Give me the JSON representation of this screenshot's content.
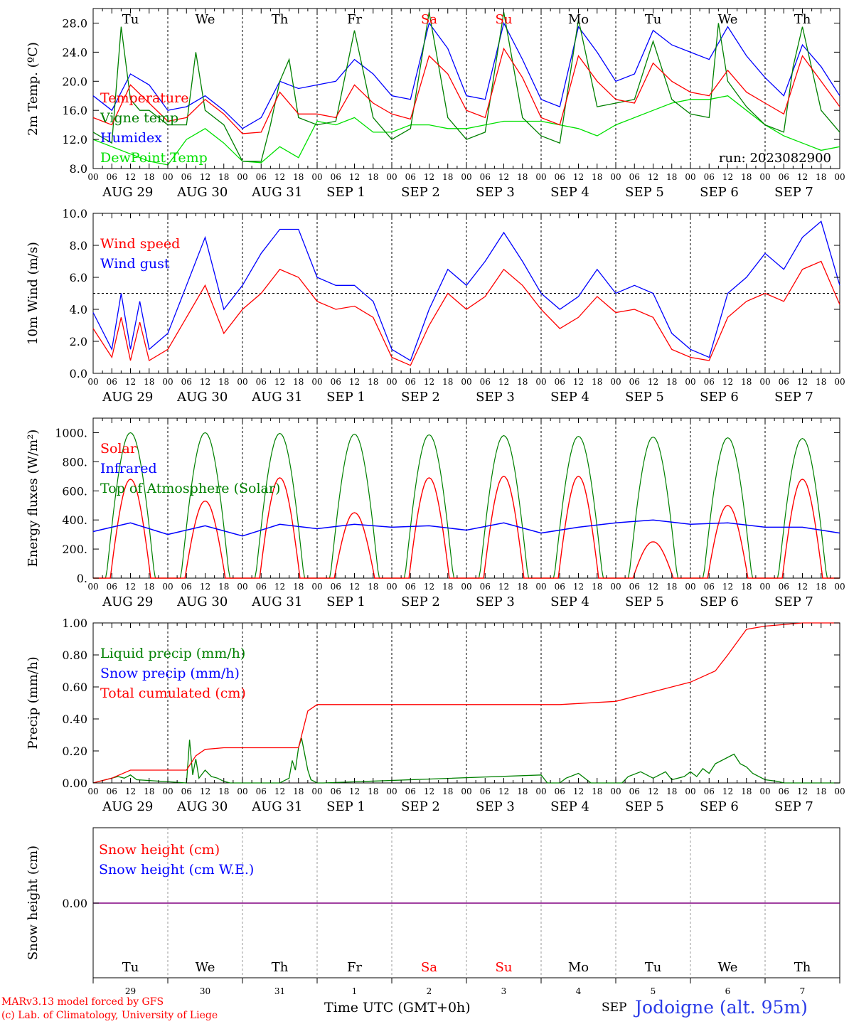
{
  "chart_data": [
    {
      "type": "line",
      "ylabel_html": "2m Temp. (ºC)",
      "ylim": [
        8,
        30
      ],
      "yticks": [
        "8.0",
        "12.0",
        "16.0",
        "20.0",
        "24.0",
        "28.0"
      ],
      "ytick_values": [
        8,
        12,
        16,
        20,
        24,
        28
      ],
      "grid": "daily dashed verticals",
      "legend": [
        {
          "name": "Temperature",
          "color": "#ff0000"
        },
        {
          "name": "Vigne temp",
          "color": "#008000"
        },
        {
          "name": "Humidex",
          "color": "#0000ff"
        },
        {
          "name": "DewPoint Temp",
          "color": "#00e000"
        }
      ],
      "annotation": "run: 2023082900",
      "day_labels": [
        "Tu",
        "We",
        "Th",
        "Fr",
        "Sa",
        "Su",
        "Mo",
        "Tu",
        "We",
        "Th"
      ],
      "series_x_unit": "hours since 2023-08-29 00 UTC",
      "series": [
        {
          "name": "Temperature",
          "color": "#ff0000",
          "x": [
            0,
            6,
            12,
            18,
            24,
            30,
            36,
            42,
            48,
            54,
            60,
            66,
            72,
            78,
            84,
            90,
            96,
            102,
            108,
            114,
            120,
            126,
            132,
            138,
            144,
            150,
            156,
            162,
            168,
            174,
            180,
            186,
            192,
            198,
            204,
            210,
            216,
            222,
            228,
            234,
            240
          ],
          "values": [
            15.0,
            14.0,
            19.5,
            17.0,
            14.5,
            15.0,
            17.5,
            15.5,
            12.8,
            13.0,
            18.5,
            15.5,
            15.5,
            15.0,
            19.5,
            17.0,
            15.5,
            14.8,
            23.5,
            21.0,
            16.0,
            15.0,
            24.5,
            20.5,
            15.0,
            14.0,
            23.5,
            20.0,
            17.5,
            17.0,
            22.5,
            20.0,
            18.5,
            18.0,
            21.5,
            18.5,
            17.0,
            15.5,
            23.5,
            20.0,
            16.5
          ]
        },
        {
          "name": "Vigne temp",
          "color": "#008000",
          "x": [
            0,
            6,
            9,
            12,
            15,
            18,
            24,
            30,
            33,
            36,
            42,
            48,
            54,
            57,
            60,
            63,
            66,
            72,
            78,
            84,
            90,
            96,
            102,
            108,
            114,
            120,
            126,
            132,
            138,
            144,
            150,
            156,
            162,
            168,
            174,
            180,
            186,
            192,
            198,
            201,
            204,
            210,
            216,
            222,
            225,
            228,
            234,
            240
          ],
          "values": [
            13.0,
            11.5,
            27.5,
            17.5,
            16.0,
            16.0,
            14.0,
            14.0,
            24.0,
            16.0,
            14.0,
            9.0,
            9.0,
            14.0,
            20.0,
            23.0,
            15.0,
            14.0,
            14.5,
            27.0,
            15.0,
            12.0,
            13.5,
            29.5,
            15.0,
            12.0,
            13.0,
            29.5,
            15.0,
            12.5,
            11.5,
            28.5,
            16.5,
            17.0,
            17.5,
            25.5,
            17.5,
            15.5,
            15.0,
            28.0,
            20.0,
            16.5,
            14.0,
            13.0,
            22.0,
            27.5,
            16.0,
            13.0
          ]
        },
        {
          "name": "Humidex",
          "color": "#0000ff",
          "x": [
            0,
            6,
            12,
            18,
            24,
            30,
            36,
            42,
            48,
            54,
            60,
            66,
            72,
            78,
            84,
            90,
            96,
            102,
            108,
            114,
            120,
            126,
            132,
            138,
            144,
            150,
            156,
            162,
            168,
            174,
            180,
            186,
            192,
            198,
            204,
            210,
            216,
            222,
            228,
            234,
            240
          ],
          "values": [
            18.0,
            16.0,
            21.0,
            19.5,
            16.0,
            16.5,
            18.0,
            16.0,
            13.5,
            15.0,
            20.0,
            19.0,
            19.5,
            20.0,
            23.0,
            21.0,
            18.0,
            17.5,
            28.0,
            24.5,
            18.0,
            17.5,
            28.0,
            23.0,
            17.5,
            16.5,
            27.5,
            24.0,
            20.0,
            21.0,
            27.0,
            25.0,
            24.0,
            23.0,
            27.5,
            23.5,
            20.5,
            18.0,
            25.0,
            22.0,
            18.0
          ]
        },
        {
          "name": "DewPoint Temp",
          "color": "#00e000",
          "x": [
            0,
            6,
            12,
            18,
            24,
            30,
            36,
            42,
            48,
            54,
            60,
            66,
            72,
            78,
            84,
            90,
            96,
            102,
            108,
            114,
            120,
            126,
            132,
            138,
            144,
            150,
            156,
            162,
            168,
            174,
            180,
            186,
            192,
            198,
            204,
            210,
            216,
            222,
            228,
            234,
            240
          ],
          "values": [
            12.0,
            11.0,
            10.0,
            9.0,
            8.5,
            12.0,
            13.5,
            11.5,
            9.0,
            8.8,
            11.0,
            9.5,
            14.5,
            14.0,
            15.0,
            13.0,
            13.0,
            14.0,
            14.0,
            13.5,
            13.5,
            14.0,
            14.5,
            14.5,
            14.5,
            14.0,
            13.5,
            12.5,
            14.0,
            15.0,
            16.0,
            17.0,
            17.5,
            17.5,
            18.0,
            16.0,
            14.0,
            12.5,
            11.5,
            10.5,
            11.0
          ]
        }
      ]
    },
    {
      "type": "line",
      "ylabel": "10m Wind (m/s)",
      "ylim": [
        0,
        10
      ],
      "yticks": [
        "0.0",
        "2.0",
        "4.0",
        "6.0",
        "8.0",
        "10.0"
      ],
      "ytick_values": [
        0,
        2,
        4,
        6,
        8,
        10
      ],
      "reference_line": 5.0,
      "legend": [
        {
          "name": "Wind speed",
          "color": "#ff0000"
        },
        {
          "name": "Wind gust",
          "color": "#0000ff"
        }
      ],
      "series_x_unit": "hours since 2023-08-29 00 UTC",
      "series": [
        {
          "name": "Wind speed",
          "color": "#ff0000",
          "x": [
            0,
            6,
            9,
            12,
            15,
            18,
            24,
            30,
            36,
            42,
            48,
            54,
            60,
            66,
            72,
            78,
            84,
            90,
            96,
            102,
            108,
            114,
            120,
            126,
            132,
            138,
            144,
            150,
            156,
            162,
            168,
            174,
            180,
            186,
            192,
            198,
            204,
            210,
            216,
            222,
            228,
            234,
            240
          ],
          "values": [
            2.8,
            1.0,
            3.5,
            0.8,
            3.2,
            0.8,
            1.5,
            3.5,
            5.5,
            2.5,
            4.0,
            5.0,
            6.5,
            6.0,
            4.5,
            4.0,
            4.2,
            3.5,
            1.0,
            0.5,
            3.0,
            5.0,
            4.0,
            4.8,
            6.5,
            5.5,
            4.0,
            2.8,
            3.5,
            4.8,
            3.8,
            4.0,
            3.5,
            1.5,
            1.0,
            0.8,
            3.5,
            4.5,
            5.0,
            4.5,
            6.5,
            7.0,
            4.3
          ]
        },
        {
          "name": "Wind gust",
          "color": "#0000ff",
          "x": [
            0,
            6,
            9,
            12,
            15,
            18,
            24,
            30,
            36,
            42,
            48,
            54,
            60,
            66,
            72,
            78,
            84,
            90,
            96,
            102,
            108,
            114,
            120,
            126,
            132,
            138,
            144,
            150,
            156,
            162,
            168,
            174,
            180,
            186,
            192,
            198,
            204,
            210,
            216,
            222,
            228,
            234,
            240
          ],
          "values": [
            3.8,
            1.5,
            5.0,
            1.5,
            4.5,
            1.5,
            2.5,
            5.5,
            8.5,
            4.0,
            5.5,
            7.5,
            9.0,
            9.0,
            6.0,
            5.5,
            5.5,
            4.5,
            1.5,
            0.8,
            4.0,
            6.5,
            5.5,
            7.0,
            8.8,
            7.0,
            5.0,
            4.0,
            4.8,
            6.5,
            5.0,
            5.5,
            5.0,
            2.5,
            1.5,
            1.0,
            5.0,
            6.0,
            7.5,
            6.5,
            8.5,
            9.5,
            5.5
          ]
        }
      ]
    },
    {
      "type": "line",
      "ylabel": "Energy fluxes (W/m²)",
      "ylim": [
        0,
        1100
      ],
      "yticks": [
        "0.",
        "200.",
        "400.",
        "600.",
        "800.",
        "1000."
      ],
      "ytick_values": [
        0,
        200,
        400,
        600,
        800,
        1000
      ],
      "legend": [
        {
          "name": "Solar",
          "color": "#ff0000"
        },
        {
          "name": "Infrared",
          "color": "#0000ff"
        },
        {
          "name": "Top of Atmosphere (Solar)",
          "color": "#008000"
        }
      ],
      "series_x_unit": "hours since 2023-08-29 00 UTC",
      "toa_daily_peak": [
        1000,
        1000,
        995,
        990,
        985,
        980,
        975,
        970,
        965,
        960
      ],
      "solar_daily_peak": [
        680,
        530,
        690,
        450,
        690,
        700,
        700,
        250,
        500,
        680
      ],
      "series": [
        {
          "name": "Infrared",
          "color": "#0000ff",
          "x": [
            0,
            12,
            24,
            36,
            48,
            60,
            72,
            84,
            96,
            108,
            120,
            132,
            144,
            156,
            168,
            180,
            192,
            204,
            216,
            228,
            240
          ],
          "values": [
            320,
            380,
            300,
            360,
            290,
            370,
            340,
            370,
            350,
            360,
            330,
            380,
            310,
            350,
            380,
            400,
            370,
            380,
            350,
            350,
            310
          ]
        }
      ]
    },
    {
      "type": "line",
      "ylabel": "Precip (mm/h)",
      "ylim": [
        0,
        1.0
      ],
      "yticks": [
        "0.00",
        "0.20",
        "0.40",
        "0.60",
        "0.80",
        "1.00"
      ],
      "ytick_values": [
        0,
        0.2,
        0.4,
        0.6,
        0.8,
        1.0
      ],
      "legend": [
        {
          "name": "Liquid precip (mm/h)",
          "color": "#008000"
        },
        {
          "name": "Snow precip (mm/h)",
          "color": "#0000ff"
        },
        {
          "name": "Total cumulated (cm)",
          "color": "#ff0000"
        }
      ],
      "series_x_unit": "hours since 2023-08-29 00 UTC",
      "series": [
        {
          "name": "Total cumulated (cm)",
          "color": "#ff0000",
          "x": [
            0,
            6,
            12,
            30,
            33,
            36,
            42,
            66,
            69,
            72,
            96,
            150,
            168,
            174,
            186,
            192,
            200,
            204,
            210,
            216,
            228,
            240
          ],
          "values": [
            0,
            0.03,
            0.08,
            0.08,
            0.17,
            0.21,
            0.22,
            0.22,
            0.45,
            0.49,
            0.49,
            0.49,
            0.51,
            0.54,
            0.6,
            0.63,
            0.7,
            0.8,
            0.96,
            0.98,
            1.0,
            1.0
          ]
        },
        {
          "name": "Liquid precip (mm/h)",
          "color": "#008000",
          "x": [
            0,
            4,
            8,
            10,
            12,
            14,
            30,
            31,
            32,
            33,
            34,
            36,
            38,
            40,
            42,
            44,
            60,
            63,
            64,
            65,
            66,
            67,
            68,
            69,
            70,
            72,
            74,
            144,
            146,
            150,
            152,
            156,
            160,
            170,
            172,
            176,
            180,
            184,
            186,
            190,
            192,
            194,
            196,
            198,
            200,
            202,
            204,
            206,
            208,
            210,
            212,
            216,
            220,
            222,
            240
          ],
          "values": [
            0,
            0.02,
            0.04,
            0.03,
            0.05,
            0.02,
            0,
            0.27,
            0.05,
            0.15,
            0.03,
            0.08,
            0.04,
            0.03,
            0.01,
            0,
            0,
            0.03,
            0.14,
            0.08,
            0.22,
            0.28,
            0.18,
            0.08,
            0.02,
            0,
            0,
            0.05,
            0,
            0,
            0.03,
            0.06,
            0,
            0,
            0.04,
            0.07,
            0.03,
            0.07,
            0.02,
            0.04,
            0.07,
            0.04,
            0.09,
            0.06,
            0.12,
            0.14,
            0.16,
            0.18,
            0.12,
            0.1,
            0.06,
            0.02,
            0.01,
            0,
            0
          ]
        }
      ]
    },
    {
      "type": "line",
      "ylabel": "Snow height (cm)",
      "yticks": [
        "0.00"
      ],
      "legend": [
        {
          "name": "Snow height (cm)",
          "color": "#ff0000"
        },
        {
          "name": "Snow height (cm W.E.)",
          "color": "#0000ff"
        }
      ],
      "series": [
        {
          "name": "Snow height (cm)",
          "values": [
            0.0,
            0.0
          ]
        },
        {
          "name": "Snow height (cm W.E.)",
          "values": [
            0.0,
            0.0
          ]
        }
      ],
      "bottom_days": [
        "Tu",
        "We",
        "Th",
        "Fr",
        "Sa",
        "Su",
        "Mo",
        "Tu",
        "We",
        "Th"
      ],
      "bottom_dates": [
        "29",
        "30",
        "31",
        "1",
        "2",
        "3",
        "4",
        "5",
        "6",
        "7"
      ],
      "xlabel": "Time UTC (GMT+0h)"
    }
  ],
  "x_hour_ticks": [
    "00",
    "06",
    "12",
    "18"
  ],
  "date_labels": [
    "AUG 29",
    "AUG 30",
    "AUG 31",
    "SEP  1",
    "SEP  2",
    "SEP  3",
    "SEP  4",
    "SEP  5",
    "SEP  6",
    "SEP  7"
  ],
  "weekend_color": "#ff0000",
  "footer": {
    "model": "MARv3.13 model forced by GFS",
    "credit": "(c) Lab. of Climatology, University of Liege",
    "month": "SEP",
    "location": "Jodoigne (alt. 95m)"
  }
}
